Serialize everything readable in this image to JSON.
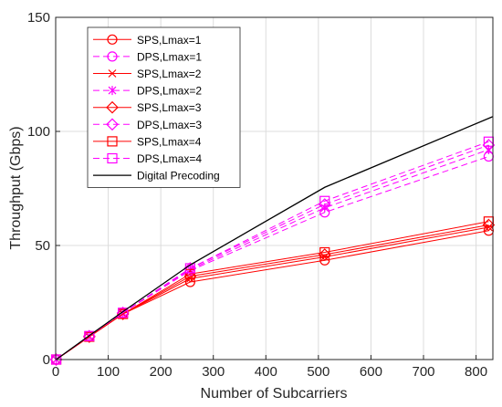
{
  "chart_data": {
    "type": "line",
    "title": "",
    "xlabel": "Number of Subcarriers",
    "ylabel": "Throughput (Gbps)",
    "xlim": [
      0,
      832
    ],
    "ylim": [
      0,
      150
    ],
    "xticks": [
      0,
      100,
      200,
      300,
      400,
      500,
      600,
      700,
      800
    ],
    "yticks": [
      0,
      50,
      100,
      150
    ],
    "grid": true,
    "legend_position": "top-left",
    "series": [
      {
        "name": "SPS,Lmax=1",
        "color": "#ff0000",
        "dash": "solid",
        "marker": "circle",
        "x": [
          1,
          64,
          128,
          256,
          512,
          824
        ],
        "y": [
          0,
          10,
          20,
          34,
          43.5,
          56.5
        ]
      },
      {
        "name": "DPS,Lmax=1",
        "color": "#ff00ff",
        "dash": "dashed",
        "marker": "circle",
        "x": [
          1,
          64,
          128,
          256,
          512,
          824
        ],
        "y": [
          0,
          10.3,
          20.5,
          39,
          64.5,
          89
        ]
      },
      {
        "name": "SPS,Lmax=2",
        "color": "#ff0000",
        "dash": "solid",
        "marker": "x",
        "x": [
          1,
          64,
          128,
          256,
          512,
          824
        ],
        "y": [
          0,
          10,
          20,
          35.5,
          45,
          58
        ]
      },
      {
        "name": "DPS,Lmax=2",
        "color": "#ff00ff",
        "dash": "dashed",
        "marker": "star",
        "x": [
          1,
          64,
          128,
          256,
          512,
          824
        ],
        "y": [
          0,
          10.3,
          20.5,
          39.5,
          66.5,
          92
        ]
      },
      {
        "name": "SPS,Lmax=3",
        "color": "#ff0000",
        "dash": "solid",
        "marker": "diamond",
        "x": [
          1,
          64,
          128,
          256,
          512,
          824
        ],
        "y": [
          0,
          10,
          20,
          36.5,
          46,
          59
        ]
      },
      {
        "name": "DPS,Lmax=3",
        "color": "#ff00ff",
        "dash": "dashed",
        "marker": "diamond",
        "x": [
          1,
          64,
          128,
          256,
          512,
          824
        ],
        "y": [
          0,
          10.3,
          20.5,
          40,
          68,
          94
        ]
      },
      {
        "name": "SPS,Lmax=4",
        "color": "#ff0000",
        "dash": "solid",
        "marker": "square",
        "x": [
          1,
          64,
          128,
          256,
          512,
          824
        ],
        "y": [
          0,
          10,
          20,
          37.5,
          47,
          60.5
        ]
      },
      {
        "name": "DPS,Lmax=4",
        "color": "#ff00ff",
        "dash": "dashed",
        "marker": "square",
        "x": [
          1,
          64,
          128,
          256,
          512,
          824
        ],
        "y": [
          0,
          10.3,
          20.5,
          40,
          69.5,
          95.5
        ]
      },
      {
        "name": "Digital Precoding",
        "color": "#000000",
        "dash": "solid",
        "marker": "none",
        "x": [
          1,
          64,
          128,
          256,
          512,
          832
        ],
        "y": [
          0,
          10.5,
          21,
          41.5,
          75.5,
          106.5
        ]
      }
    ]
  }
}
